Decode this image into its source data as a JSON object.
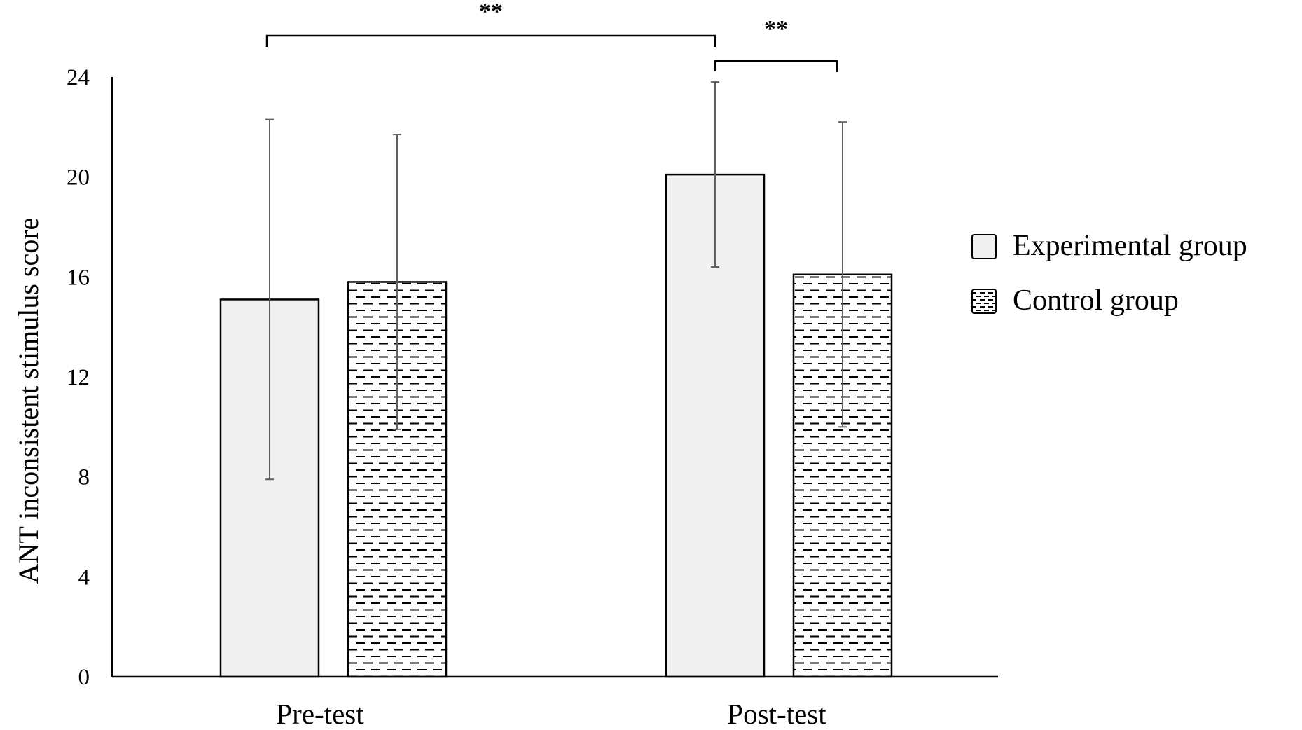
{
  "chart_data": {
    "type": "bar",
    "title": "",
    "xlabel": "",
    "ylabel": "ANT inconsistent stimulus score",
    "ylim": [
      0,
      24
    ],
    "yticks": [
      0,
      4,
      8,
      12,
      16,
      20,
      24
    ],
    "categories": [
      "Pre-test",
      "Post-test"
    ],
    "series": [
      {
        "name": "Experimental group",
        "values": [
          15.1,
          20.1
        ],
        "error": [
          7.2,
          3.7
        ],
        "pattern": "solid",
        "fill": "#f0f0f0"
      },
      {
        "name": "Control group",
        "values": [
          15.8,
          16.1
        ],
        "error": [
          5.9,
          6.1
        ],
        "pattern": "dashes",
        "fill": "#ffffff"
      }
    ],
    "significance": [
      {
        "label": "**",
        "from": "Experimental group / Pre-test",
        "to": "Experimental group / Post-test"
      },
      {
        "label": "**",
        "from": "Experimental group / Post-test",
        "to": "Control group / Post-test"
      }
    ],
    "legend_position": "right",
    "grid": false
  }
}
